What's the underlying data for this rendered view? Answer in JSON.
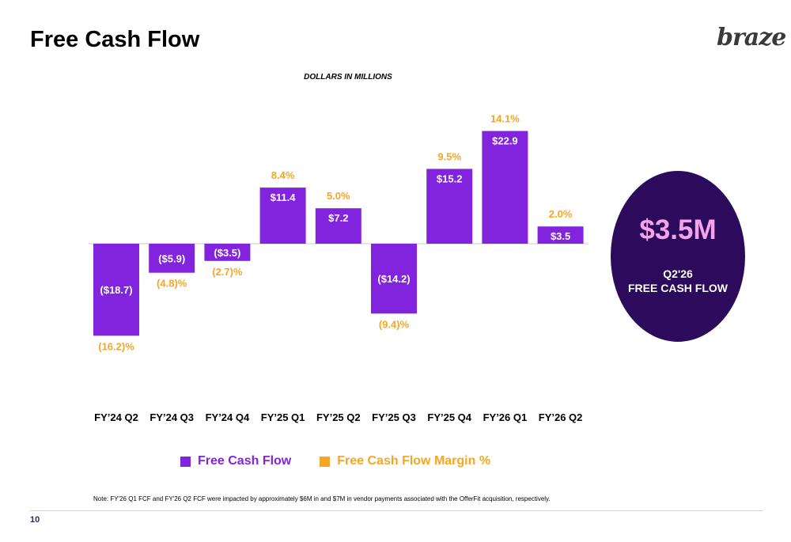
{
  "slide": {
    "title": "Free Cash Flow",
    "logo_text": "braze",
    "units_label": "DOLLARS IN MILLIONS",
    "page_number": "10",
    "note": "Note: FY'26 Q1 FCF and FY'26 Q2 FCF were impacted by approximately $6M in and $7M in vendor payments associated with the OfferFit acquisition, respectively."
  },
  "callout": {
    "value": "$3.5M",
    "line1": "Q2'26",
    "line2": "FREE CASH FLOW"
  },
  "colors": {
    "bar": "#8223de",
    "margin_text": "#f5a623",
    "bubble": "#2c0a5c",
    "bubble_value": "#f5a3e8"
  },
  "chart_data": {
    "type": "bar",
    "categories": [
      "FY’24 Q2",
      "FY’24 Q3",
      "FY’24 Q4",
      "FY’25 Q1",
      "FY’25 Q2",
      "FY’25 Q3",
      "FY’25 Q4",
      "FY’26 Q1",
      "FY’26 Q2"
    ],
    "series": [
      {
        "name": "Free Cash Flow",
        "values": [
          -18.7,
          -5.9,
          -3.5,
          11.4,
          7.2,
          -14.2,
          15.2,
          22.9,
          3.5
        ],
        "labels": [
          "($18.7)",
          "($5.9)",
          "($3.5)",
          "$11.4",
          "$7.2",
          "($14.2)",
          "$15.2",
          "$22.9",
          "$3.5"
        ]
      },
      {
        "name": "Free Cash Flow Margin %",
        "values": [
          -16.2,
          -4.8,
          -2.7,
          8.4,
          5.0,
          -9.4,
          9.5,
          14.1,
          2.0
        ],
        "labels": [
          "(16.2)%",
          "(4.8)%",
          "(2.7)%",
          "8.4%",
          "5.0%",
          "(9.4)%",
          "9.5%",
          "14.1%",
          "2.0%"
        ]
      }
    ],
    "legend_position": "bottom",
    "grid": false
  }
}
